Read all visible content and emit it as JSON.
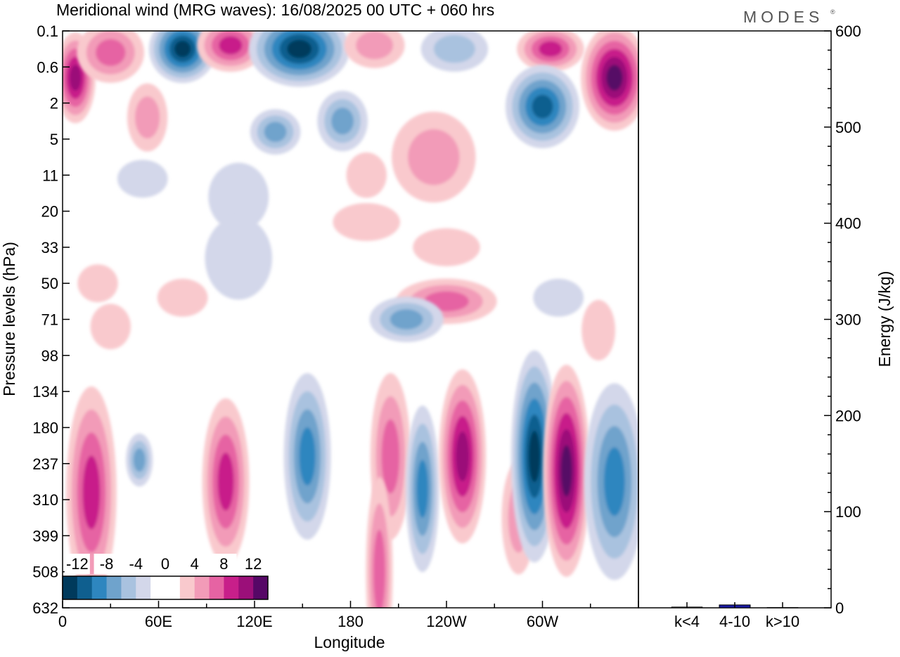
{
  "chart_data": [
    {
      "type": "heatmap",
      "title": "Meridional wind (MRG waves):  16/08/2025  00 UTC  + 060 hrs",
      "xlabel": "Longitude",
      "ylabel": "Pressure levels (hPa)",
      "x_ticks": [
        "0",
        "60E",
        "120E",
        "180",
        "120W",
        "60W"
      ],
      "x_tick_values": [
        0,
        60,
        120,
        180,
        240,
        300
      ],
      "xlim": [
        0,
        360
      ],
      "y_ticks": [
        "0.1",
        "0.6",
        "2",
        "5",
        "11",
        "20",
        "33",
        "50",
        "71",
        "98",
        "134",
        "180",
        "237",
        "310",
        "399",
        "508",
        "632"
      ],
      "colorbar": {
        "labels": [
          "-12",
          "-8",
          "-4",
          "0",
          "4",
          "8",
          "12"
        ],
        "colors": [
          "#003a5c",
          "#0f5f8f",
          "#2e86bf",
          "#6fa3cc",
          "#a9c2df",
          "#d3d7ea",
          "#ffffff",
          "#ffffff",
          "#f9c9cd",
          "#f29bb8",
          "#e663a3",
          "#c81f8a",
          "#9b0f79",
          "#560766"
        ],
        "label_positions": [
          1,
          3,
          5,
          7,
          9,
          11,
          13
        ]
      },
      "contour_blobs": [
        {
          "lon": 8,
          "lev": 1.3,
          "rx": 12,
          "ry": 1.2,
          "c": 12
        },
        {
          "lon": 30,
          "lev": 0.6,
          "rx": 20,
          "ry": 0.8,
          "c": 10
        },
        {
          "lon": 75,
          "lev": 0.5,
          "rx": 20,
          "ry": 0.9,
          "c": 0
        },
        {
          "lon": 105,
          "lev": 0.4,
          "rx": 20,
          "ry": 0.7,
          "c": 11
        },
        {
          "lon": 148,
          "lev": 0.5,
          "rx": 30,
          "ry": 1.0,
          "c": 0
        },
        {
          "lon": 195,
          "lev": 0.4,
          "rx": 18,
          "ry": 0.6,
          "c": 9
        },
        {
          "lon": 245,
          "lev": 0.5,
          "rx": 20,
          "ry": 0.6,
          "c": 4
        },
        {
          "lon": 305,
          "lev": 0.5,
          "rx": 20,
          "ry": 0.6,
          "c": 11
        },
        {
          "lon": 345,
          "lev": 1.3,
          "rx": 20,
          "ry": 1.4,
          "c": 13
        },
        {
          "lon": 300,
          "lev": 2.1,
          "rx": 22,
          "ry": 1.1,
          "c": 1
        },
        {
          "lon": 53,
          "lev": 2.4,
          "rx": 12,
          "ry": 0.9,
          "c": 9
        },
        {
          "lon": 133,
          "lev": 2.8,
          "rx": 15,
          "ry": 0.6,
          "c": 3
        },
        {
          "lon": 175,
          "lev": 2.5,
          "rx": 15,
          "ry": 0.8,
          "c": 3
        },
        {
          "lon": 232,
          "lev": 3.5,
          "rx": 25,
          "ry": 1.2,
          "c": 9
        },
        {
          "lon": 190,
          "lev": 4.0,
          "rx": 12,
          "ry": 0.6,
          "c": 8
        },
        {
          "lon": 110,
          "lev": 4.6,
          "rx": 18,
          "ry": 0.9,
          "c": 5
        },
        {
          "lon": 50,
          "lev": 4.1,
          "rx": 15,
          "ry": 0.5,
          "c": 5
        },
        {
          "lon": 190,
          "lev": 5.3,
          "rx": 20,
          "ry": 0.5,
          "c": 8
        },
        {
          "lon": 240,
          "lev": 6.0,
          "rx": 20,
          "ry": 0.5,
          "c": 8
        },
        {
          "lon": 110,
          "lev": 6.3,
          "rx": 20,
          "ry": 1.1,
          "c": 5
        },
        {
          "lon": 22,
          "lev": 7.0,
          "rx": 12,
          "ry": 0.5,
          "c": 8
        },
        {
          "lon": 75,
          "lev": 7.4,
          "rx": 15,
          "ry": 0.5,
          "c": 8
        },
        {
          "lon": 240,
          "lev": 7.5,
          "rx": 30,
          "ry": 0.6,
          "c": 10
        },
        {
          "lon": 310,
          "lev": 7.4,
          "rx": 15,
          "ry": 0.5,
          "c": 5
        },
        {
          "lon": 30,
          "lev": 8.2,
          "rx": 12,
          "ry": 0.6,
          "c": 8
        },
        {
          "lon": 335,
          "lev": 8.3,
          "rx": 10,
          "ry": 0.8,
          "c": 8
        },
        {
          "lon": 215,
          "lev": 8.0,
          "rx": 22,
          "ry": 0.6,
          "c": 3
        },
        {
          "lon": 18,
          "lev": 12.8,
          "rx": 15,
          "ry": 2.8,
          "c": 11
        },
        {
          "lon": 48,
          "lev": 11.9,
          "rx": 8,
          "ry": 0.7,
          "c": 3
        },
        {
          "lon": 102,
          "lev": 12.5,
          "rx": 14,
          "ry": 2.2,
          "c": 11
        },
        {
          "lon": 153,
          "lev": 11.8,
          "rx": 14,
          "ry": 2.2,
          "c": 2
        },
        {
          "lon": 205,
          "lev": 11.8,
          "rx": 12,
          "ry": 2.2,
          "c": 10
        },
        {
          "lon": 198,
          "lev": 15.0,
          "rx": 8,
          "ry": 2.5,
          "c": 10
        },
        {
          "lon": 225,
          "lev": 12.7,
          "rx": 10,
          "ry": 2.2,
          "c": 2
        },
        {
          "lon": 250,
          "lev": 11.8,
          "rx": 14,
          "ry": 2.3,
          "c": 12
        },
        {
          "lon": 285,
          "lev": 13.5,
          "rx": 10,
          "ry": 1.5,
          "c": 9
        },
        {
          "lon": 295,
          "lev": 11.8,
          "rx": 14,
          "ry": 2.8,
          "c": 0
        },
        {
          "lon": 315,
          "lev": 12.2,
          "rx": 14,
          "ry": 2.8,
          "c": 13
        },
        {
          "lon": 345,
          "lev": 12.5,
          "rx": 18,
          "ry": 2.6,
          "c": 2
        }
      ]
    },
    {
      "type": "bar",
      "ylabel": "Energy (J/kg)",
      "categories": [
        "k<4",
        "4-10",
        "k>10"
      ],
      "values": [
        1,
        3,
        0.5
      ],
      "ylim": [
        0,
        600
      ],
      "y_ticks": [
        "0",
        "100",
        "200",
        "300",
        "400",
        "500",
        "600"
      ],
      "y_tick_values": [
        0,
        100,
        200,
        300,
        400,
        500,
        600
      ],
      "bar_color": "#1a1aa0"
    }
  ],
  "logo": {
    "text": "MODES",
    "mark": "®",
    "color": "#555555"
  }
}
